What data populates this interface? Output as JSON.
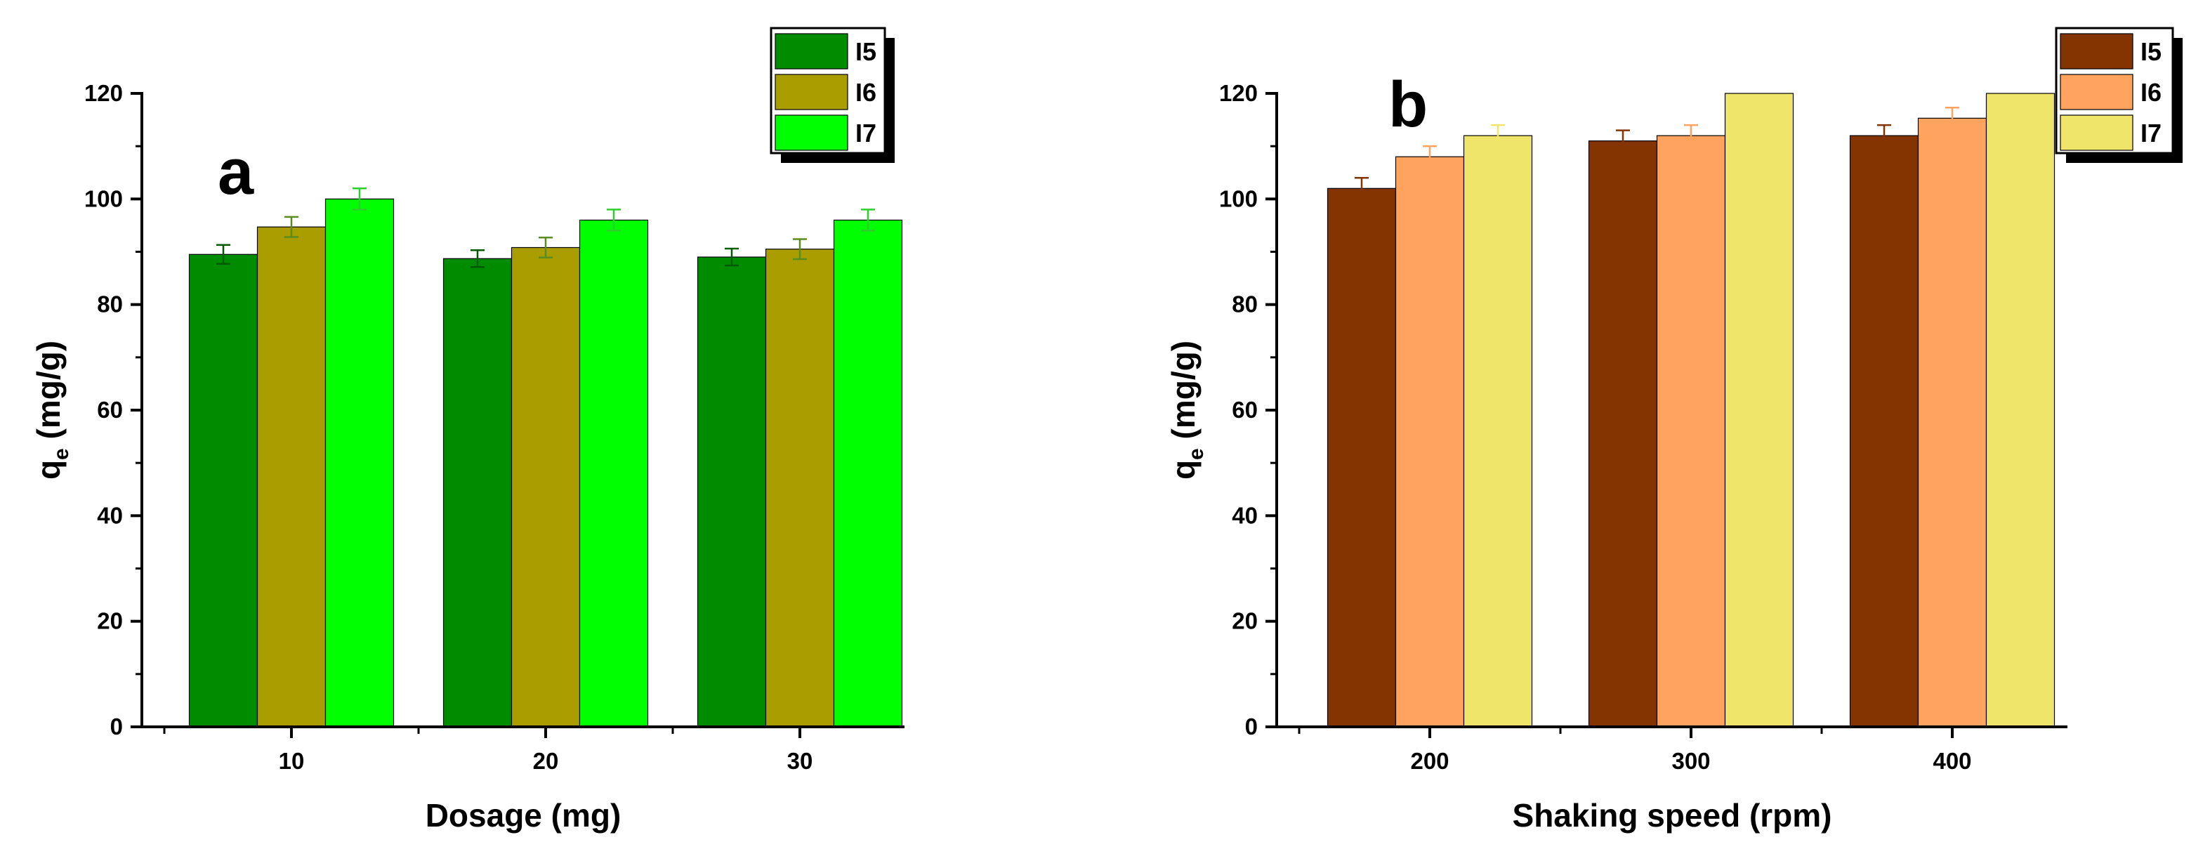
{
  "chart_data": [
    {
      "type": "bar",
      "panel_label": "a",
      "title": "",
      "xlabel": "Dosage (mg)",
      "ylabel_main": "q",
      "ylabel_sub": "e",
      "ylabel_rest": " (mg/g)",
      "ylim": [
        0,
        120
      ],
      "yticks": [
        "0",
        "20",
        "40",
        "60",
        "80",
        "100",
        "120"
      ],
      "categories": [
        "10",
        "20",
        "30"
      ],
      "legend_position": "top-right",
      "series": [
        {
          "name": "I5",
          "color": "#008c00",
          "error_color": "#005a00",
          "values": [
            89.5,
            88.7,
            89.0
          ],
          "errors": [
            1.8,
            1.6,
            1.6
          ]
        },
        {
          "name": "I6",
          "color": "#a99d00",
          "error_color": "#5a8c1e",
          "values": [
            94.7,
            90.8,
            90.5
          ],
          "errors": [
            1.9,
            1.9,
            1.9
          ]
        },
        {
          "name": "I7",
          "color": "#00ff00",
          "error_color": "#2dcf2d",
          "values": [
            100.0,
            96.0,
            96.0
          ],
          "errors": [
            2.0,
            2.0,
            2.0
          ]
        }
      ]
    },
    {
      "type": "bar",
      "panel_label": "b",
      "title": "",
      "xlabel": "Shaking speed (rpm)",
      "ylabel_main": "q",
      "ylabel_sub": "e",
      "ylabel_rest": " (mg/g)",
      "ylim": [
        0,
        120
      ],
      "yticks": [
        "0",
        "20",
        "40",
        "60",
        "80",
        "100",
        "120"
      ],
      "categories": [
        "200",
        "300",
        "400"
      ],
      "legend_position": "top-right",
      "series": [
        {
          "name": "I5",
          "color": "#843400",
          "error_color": "#843400",
          "values": [
            102.0,
            111.0,
            112.0
          ],
          "errors": [
            2.0,
            2.0,
            2.0
          ]
        },
        {
          "name": "I6",
          "color": "#ffa35e",
          "error_color": "#ffa35e",
          "values": [
            108.0,
            112.0,
            115.3
          ],
          "errors": [
            2.0,
            2.0,
            2.0
          ]
        },
        {
          "name": "I7",
          "color": "#f0e56b",
          "error_color": "#f0e56b",
          "values": [
            112.0,
            120.0,
            120.0
          ],
          "errors": [
            2.0,
            0,
            0
          ]
        }
      ]
    }
  ]
}
